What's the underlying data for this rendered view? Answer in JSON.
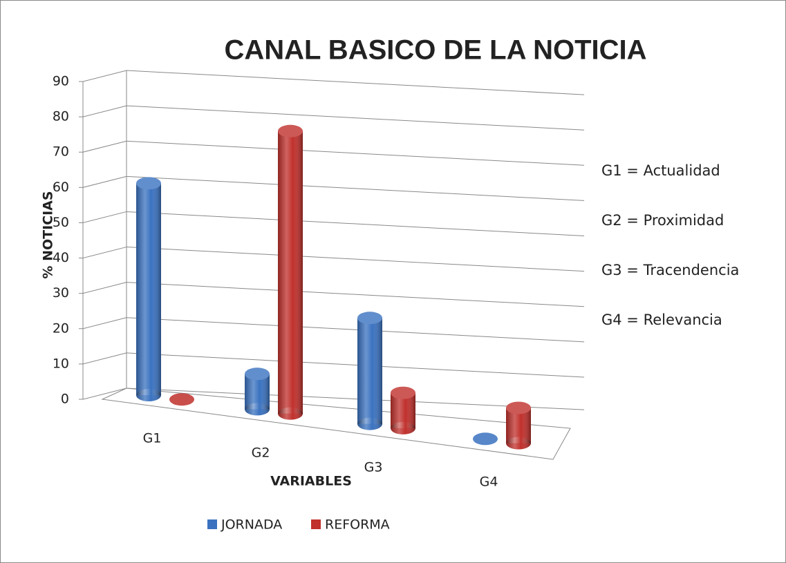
{
  "chart_data": {
    "type": "bar3d",
    "title": "CANAL BASICO DE LA NOTICIA",
    "y_label": "% NOTICIAS",
    "x_label": "VARIABLES",
    "categories": [
      "G1",
      "G2",
      "G3",
      "G4"
    ],
    "series": [
      {
        "name": "JORNADA",
        "color": "#3a72c0",
        "values": [
          60,
          10,
          30,
          0
        ]
      },
      {
        "name": "REFORMA",
        "color": "#c0302c",
        "values": [
          0,
          80,
          10,
          10
        ]
      }
    ],
    "ylim": [
      0,
      90
    ],
    "yticks": [
      0,
      10,
      20,
      30,
      40,
      50,
      60,
      70,
      80,
      90
    ],
    "grid": true,
    "annotations": [
      "G1 = Actualidad",
      "G2 = Proximidad",
      "G3 = Tracendencia",
      "G4 = Relevancia"
    ]
  }
}
